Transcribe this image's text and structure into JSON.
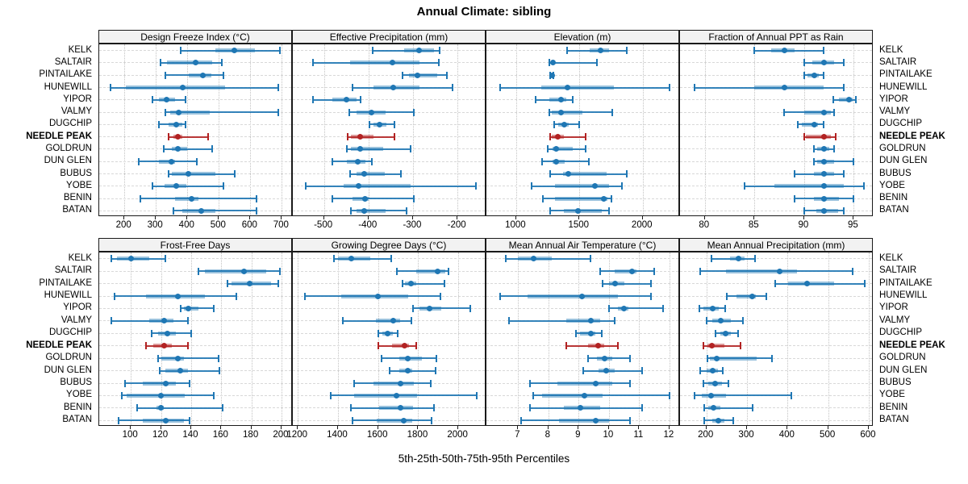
{
  "title": "Annual Climate: sibling",
  "caption": "5th-25th-50th-75th-95th Percentiles",
  "stations": [
    "KELK",
    "SALTAIR",
    "PINTAILAKE",
    "HUNEWILL",
    "YIPOR",
    "VALMY",
    "DUGCHIP",
    "NEEDLE PEAK",
    "GOLDRUN",
    "DUN GLEN",
    "BUBUS",
    "YOBE",
    "BENIN",
    "BATAN"
  ],
  "highlight_station": "NEEDLE PEAK",
  "percentiles": [
    5,
    25,
    50,
    75,
    95
  ],
  "colors": {
    "series": "#1f77b4",
    "series_box": "rgba(31,119,180,0.45)",
    "series_whisker": "rgba(31,119,180,0.9)",
    "highlight": "#b22222",
    "highlight_box": "rgba(178,34,34,0.45)",
    "highlight_whisker": "rgba(178,34,34,0.9)",
    "strip_bg": "#f2f2f2",
    "border": "#1a1a1a"
  },
  "chart_data": [
    {
      "type": "dot-interval",
      "title": "Design Freeze Index (°C)",
      "xlim": [
        120,
        735
      ],
      "ticks": [
        200,
        300,
        400,
        500,
        600,
        700
      ],
      "values": [
        [
          380,
          490,
          550,
          615,
          695
        ],
        [
          315,
          335,
          425,
          480,
          510
        ],
        [
          330,
          405,
          450,
          475,
          515
        ],
        [
          155,
          205,
          385,
          520,
          690
        ],
        [
          290,
          310,
          335,
          360,
          395
        ],
        [
          330,
          345,
          372,
          470,
          690
        ],
        [
          310,
          340,
          365,
          385,
          395
        ],
        [
          340,
          355,
          370,
          385,
          465
        ],
        [
          325,
          350,
          370,
          400,
          480
        ],
        [
          245,
          310,
          350,
          362,
          430
        ],
        [
          340,
          350,
          403,
          488,
          550
        ],
        [
          290,
          328,
          364,
          397,
          514
        ],
        [
          250,
          362,
          414,
          435,
          619
        ],
        [
          356,
          384,
          445,
          489,
          619
        ]
      ]
    },
    {
      "type": "dot-interval",
      "title": "Effective Precipitation (mm)",
      "xlim": [
        -570,
        -135
      ],
      "ticks": [
        -500,
        -400,
        -300,
        -200
      ],
      "values": [
        [
          -390,
          -320,
          -287,
          -252,
          -240
        ],
        [
          -525,
          -442,
          -347,
          -285,
          -242
        ],
        [
          -324,
          -309,
          -290,
          -245,
          -223
        ],
        [
          -436,
          -388,
          -344,
          -285,
          -212
        ],
        [
          -525,
          -482,
          -450,
          -427,
          -418
        ],
        [
          -444,
          -427,
          -393,
          -361,
          -298
        ],
        [
          -397,
          -389,
          -376,
          -359,
          -341
        ],
        [
          -447,
          -439,
          -419,
          -389,
          -342
        ],
        [
          -448,
          -439,
          -419,
          -367,
          -306
        ],
        [
          -482,
          -448,
          -424,
          -406,
          -393
        ],
        [
          -441,
          -427,
          -409,
          -364,
          -327
        ],
        [
          -541,
          -456,
          -423,
          -306,
          -158
        ],
        [
          -482,
          -436,
          -408,
          -400,
          -298
        ],
        [
          -439,
          -427,
          -410,
          -361,
          -314
        ]
      ]
    },
    {
      "type": "dot-interval",
      "title": "Elevation (m)",
      "xlim": [
        765,
        2295
      ],
      "ticks": [
        1000,
        1500,
        2000
      ],
      "values": [
        [
          1400,
          1580,
          1665,
          1735,
          1875
        ],
        [
          1265,
          1272,
          1288,
          1310,
          1640
        ],
        [
          1267,
          1275,
          1282,
          1290,
          1297
        ],
        [
          875,
          1197,
          1403,
          1770,
          2215
        ],
        [
          1155,
          1260,
          1352,
          1398,
          1450
        ],
        [
          1265,
          1282,
          1352,
          1525,
          1758
        ],
        [
          1303,
          1335,
          1381,
          1415,
          1500
        ],
        [
          1271,
          1282,
          1331,
          1377,
          1551
        ],
        [
          1250,
          1288,
          1318,
          1445,
          1550
        ],
        [
          1203,
          1288,
          1318,
          1381,
          1572
        ],
        [
          1271,
          1373,
          1415,
          1716,
          1875
        ],
        [
          1123,
          1310,
          1620,
          1733,
          1837
        ],
        [
          1212,
          1310,
          1690,
          1720,
          1754
        ],
        [
          1271,
          1377,
          1487,
          1674,
          1733
        ]
      ]
    },
    {
      "type": "dot-interval",
      "title": "Fraction of Annual PPT as Rain",
      "xlim": [
        77.5,
        97
      ],
      "ticks": [
        80,
        85,
        90,
        95
      ],
      "values": [
        [
          85,
          86.7,
          88,
          89,
          92
        ],
        [
          90,
          90.8,
          92,
          93,
          94
        ],
        [
          90,
          90.3,
          91,
          91.5,
          92
        ],
        [
          79,
          85,
          88,
          92,
          94
        ],
        [
          92.9,
          93.5,
          94.5,
          94.9,
          95.2
        ],
        [
          88,
          90,
          92,
          92.7,
          93
        ],
        [
          89.4,
          89.8,
          91,
          91.4,
          92
        ],
        [
          90,
          90.2,
          92,
          92.7,
          93.2
        ],
        [
          91,
          91.3,
          92,
          92.5,
          93
        ],
        [
          91,
          91.3,
          92,
          93,
          95
        ],
        [
          89,
          91,
          92,
          93,
          94
        ],
        [
          84,
          87,
          92,
          94,
          96
        ],
        [
          89,
          91,
          92,
          93.5,
          95
        ],
        [
          90,
          91.2,
          92,
          93.4,
          94
        ]
      ]
    },
    {
      "type": "dot-interval",
      "title": "Frost-Free Days",
      "xlim": [
        79,
        207.5
      ],
      "ticks": [
        100,
        120,
        140,
        160,
        180,
        200
      ],
      "values": [
        [
          87,
          91,
          100,
          112,
          123
        ],
        [
          145,
          149,
          175,
          190,
          199
        ],
        [
          164,
          167,
          179,
          193,
          198
        ],
        [
          89,
          110,
          131,
          149,
          170
        ],
        [
          133,
          135,
          138,
          145,
          155
        ],
        [
          87,
          112,
          122,
          128,
          138
        ],
        [
          114,
          118,
          124,
          130,
          140
        ],
        [
          110,
          115,
          122,
          127,
          138
        ],
        [
          118,
          120,
          131,
          135,
          158
        ],
        [
          119,
          123,
          133,
          138,
          159
        ],
        [
          96,
          108,
          123,
          130,
          139
        ],
        [
          94,
          97,
          120,
          136,
          155
        ],
        [
          104,
          117,
          120,
          122,
          161
        ],
        [
          92,
          108,
          123,
          135,
          139
        ]
      ]
    },
    {
      "type": "dot-interval",
      "title": "Growing Degree Days (°C)",
      "xlim": [
        1175,
        2140
      ],
      "ticks": [
        1200,
        1400,
        1600,
        1800,
        2000
      ],
      "values": [
        [
          1380,
          1400,
          1465,
          1560,
          1665
        ],
        [
          1695,
          1790,
          1895,
          1935,
          1950
        ],
        [
          1723,
          1733,
          1764,
          1790,
          1930
        ],
        [
          1236,
          1417,
          1600,
          1750,
          1910
        ],
        [
          1775,
          1805,
          1855,
          1915,
          2060
        ],
        [
          1424,
          1590,
          1675,
          1710,
          1766
        ],
        [
          1600,
          1620,
          1648,
          1672,
          1697
        ],
        [
          1600,
          1670,
          1733,
          1756,
          1790
        ],
        [
          1616,
          1706,
          1746,
          1817,
          1890
        ],
        [
          1656,
          1706,
          1746,
          1769,
          1885
        ],
        [
          1482,
          1576,
          1710,
          1777,
          1863
        ],
        [
          1364,
          1482,
          1693,
          1796,
          2091
        ],
        [
          1464,
          1605,
          1713,
          1773,
          1880
        ],
        [
          1471,
          1592,
          1729,
          1769,
          1867
        ]
      ]
    },
    {
      "type": "dot-interval",
      "title": "Mean Annual Air Temperature (°C)",
      "xlim": [
        5.95,
        12.35
      ],
      "ticks": [
        7,
        8,
        9,
        10,
        11,
        12
      ],
      "values": [
        [
          6.6,
          7.0,
          7.5,
          8.1,
          9.4
        ],
        [
          9.7,
          10.2,
          10.75,
          10.9,
          11.5
        ],
        [
          9.8,
          10.0,
          10.2,
          10.5,
          11.4
        ],
        [
          6.4,
          7.3,
          9.1,
          10.3,
          11.4
        ],
        [
          10.0,
          10.3,
          10.5,
          10.65,
          11.8
        ],
        [
          6.7,
          8.6,
          9.4,
          9.7,
          10.2
        ],
        [
          8.9,
          9.05,
          9.4,
          9.55,
          9.75
        ],
        [
          8.6,
          9.3,
          9.65,
          9.85,
          10.3
        ],
        [
          9.3,
          9.6,
          9.85,
          10.1,
          10.7
        ],
        [
          9.15,
          9.65,
          9.9,
          10.2,
          11.1
        ],
        [
          7.4,
          8.3,
          9.55,
          10.1,
          10.7
        ],
        [
          7.5,
          7.8,
          9.2,
          9.8,
          12.0
        ],
        [
          7.4,
          8.5,
          9.05,
          9.7,
          11.1
        ],
        [
          7.1,
          8.35,
          9.55,
          10.0,
          10.7
        ]
      ]
    },
    {
      "type": "dot-interval",
      "title": "Mean Annual Precipitation (mm)",
      "xlim": [
        135,
        612
      ],
      "ticks": [
        200,
        300,
        400,
        500,
        600
      ],
      "values": [
        [
          213,
          258,
          280,
          295,
          320
        ],
        [
          185,
          248,
          380,
          424,
          560
        ],
        [
          370,
          402,
          449,
          515,
          590
        ],
        [
          250,
          275,
          312,
          322,
          348
        ],
        [
          182,
          193,
          215,
          231,
          246
        ],
        [
          200,
          215,
          236,
          260,
          291
        ],
        [
          222,
          235,
          248,
          260,
          278
        ],
        [
          193,
          202,
          213,
          244,
          284
        ],
        [
          202,
          209,
          225,
          324,
          361
        ],
        [
          185,
          200,
          215,
          229,
          240
        ],
        [
          193,
          205,
          222,
          238,
          255
        ],
        [
          170,
          189,
          211,
          248,
          410
        ],
        [
          195,
          205,
          218,
          235,
          313
        ],
        [
          195,
          215,
          229,
          244,
          266
        ]
      ]
    }
  ]
}
